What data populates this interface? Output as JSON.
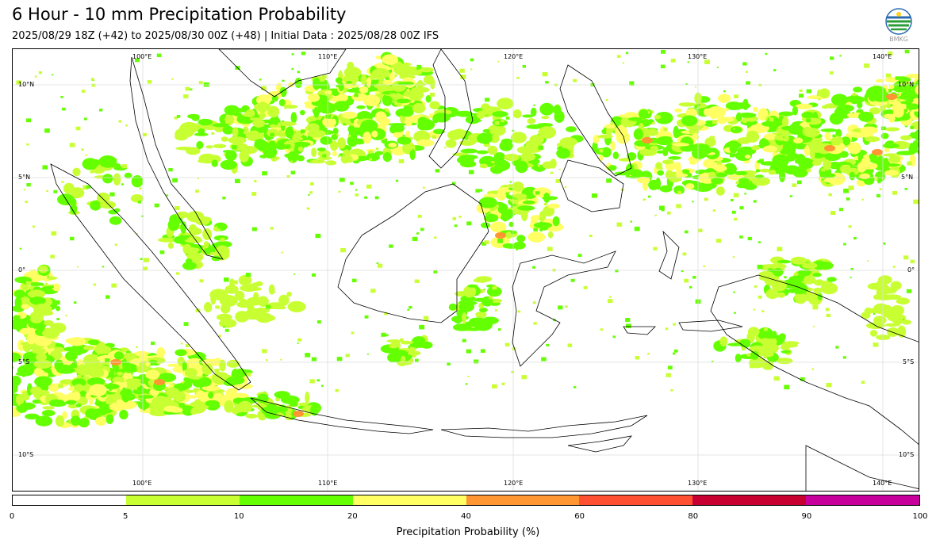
{
  "title": "6 Hour - 10 mm Precipitation Probability",
  "subtitle": "2025/08/29 18Z (+42) to 2025/08/30 00Z (+48) | Initial Data : 2025/08/28 00Z IFS",
  "logo": {
    "icon": "bmkg-logo-icon",
    "text": "BMKG"
  },
  "map": {
    "lon_labels_top": [
      "100°E",
      "110°E",
      "120°E",
      "130°E",
      "140°E"
    ],
    "lon_labels_bottom": [
      "100°E",
      "110°E",
      "120°E",
      "130°E",
      "140°E"
    ],
    "lat_labels_left": [
      "10°N",
      "5°N",
      "0°",
      "5°S",
      "10°S"
    ],
    "lat_labels_right": [
      "10°N",
      "5°N",
      "0°",
      "5°S",
      "10°S"
    ],
    "extent": {
      "lon_min": 93,
      "lon_max": 142,
      "lat_min": -12,
      "lat_max": 12
    }
  },
  "colorbar": {
    "title": "Precipitation Probability (%)",
    "ticks": [
      "0",
      "5",
      "10",
      "20",
      "40",
      "60",
      "80",
      "90",
      "100"
    ],
    "colors": [
      "#ffffff",
      "#c8ff32",
      "#64ff00",
      "#ffff64",
      "#ff9632",
      "#ff5032",
      "#c80032",
      "#c8009b"
    ]
  }
}
